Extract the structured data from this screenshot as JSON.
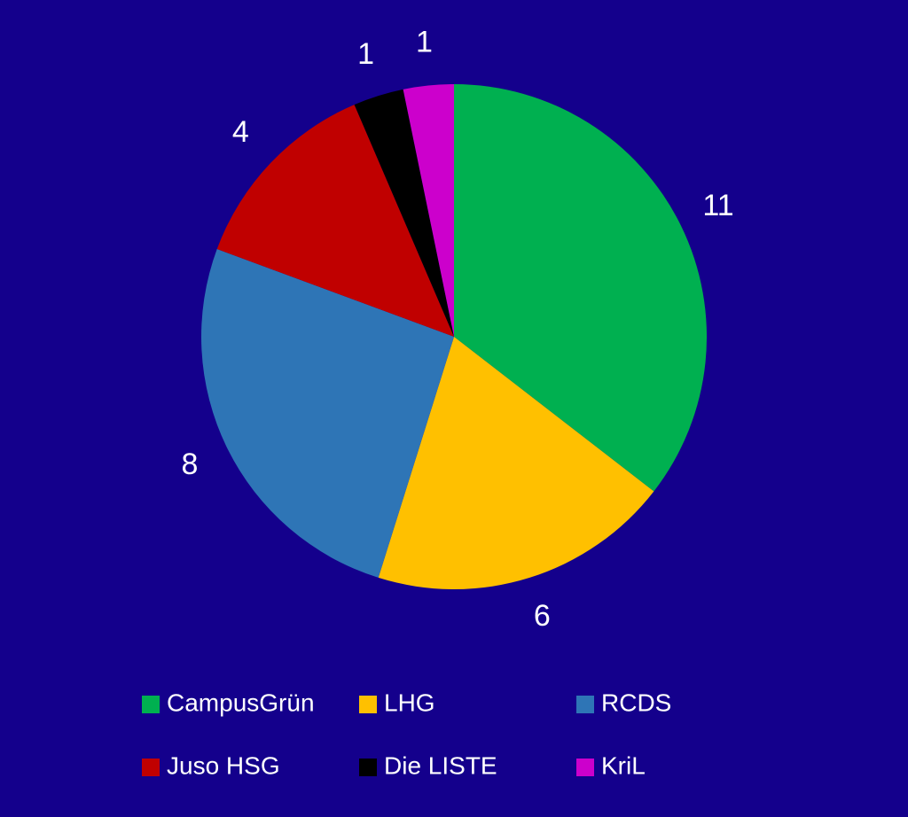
{
  "chart_data": {
    "type": "pie",
    "categories": [
      "CampusGrün",
      "LHG",
      "RCDS",
      "Juso HSG",
      "Die LISTE",
      "KriL"
    ],
    "values": [
      11,
      6,
      8,
      4,
      1,
      1
    ],
    "colors": [
      "#00b050",
      "#ffc000",
      "#2e75b6",
      "#c00000",
      "#000000",
      "#cc00cc"
    ]
  }
}
